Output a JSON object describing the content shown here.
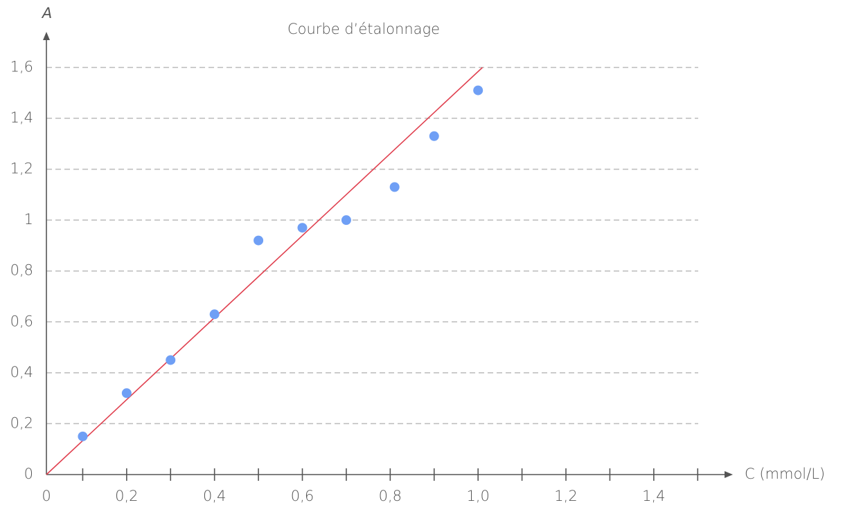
{
  "chart_data": {
    "type": "scatter",
    "title": "Courbe d’étalonnage",
    "x_label": "C (mmol/L)",
    "y_label": "A",
    "x": [
      0.1,
      0.2,
      0.3,
      0.4,
      0.5,
      0.6,
      0.7,
      0.81,
      0.9,
      1.0
    ],
    "values": [
      0.15,
      0.32,
      0.45,
      0.63,
      0.92,
      0.97,
      1.0,
      1.13,
      1.33,
      1.51
    ],
    "color": "#6f9ff5",
    "fit": {
      "x": [
        0,
        1.01
      ],
      "y": [
        0,
        1.6
      ],
      "color": "#e0404f"
    },
    "xlim": [
      0,
      1.58
    ],
    "ylim": [
      0,
      1.74
    ],
    "xticks": [
      0,
      {
        "value": 0.2,
        "label": "0,2"
      },
      {
        "value": 0.4,
        "label": "0,4"
      },
      {
        "value": 0.6,
        "label": "0,6"
      },
      {
        "value": 0.8,
        "label": "0,8"
      },
      {
        "value": 1.0,
        "label": "1,0"
      },
      {
        "value": 1.2,
        "label": "1,2"
      },
      {
        "value": 1.4,
        "label": "1,4"
      }
    ],
    "xminorticks": [
      0.1,
      0.3,
      0.5,
      0.7,
      0.9,
      1.1,
      1.3,
      1.5
    ],
    "yticks": [
      0,
      {
        "value": 0.2,
        "label": "0,2"
      },
      {
        "value": 0.4,
        "label": "0,4"
      },
      {
        "value": 0.6,
        "label": "0,6"
      },
      {
        "value": 0.8,
        "label": "0,8"
      },
      1,
      {
        "value": 1.2,
        "label": "1,2"
      },
      {
        "value": 1.4,
        "label": "1,4"
      },
      {
        "value": 1.6,
        "label": "1,6"
      }
    ],
    "grid": true
  }
}
